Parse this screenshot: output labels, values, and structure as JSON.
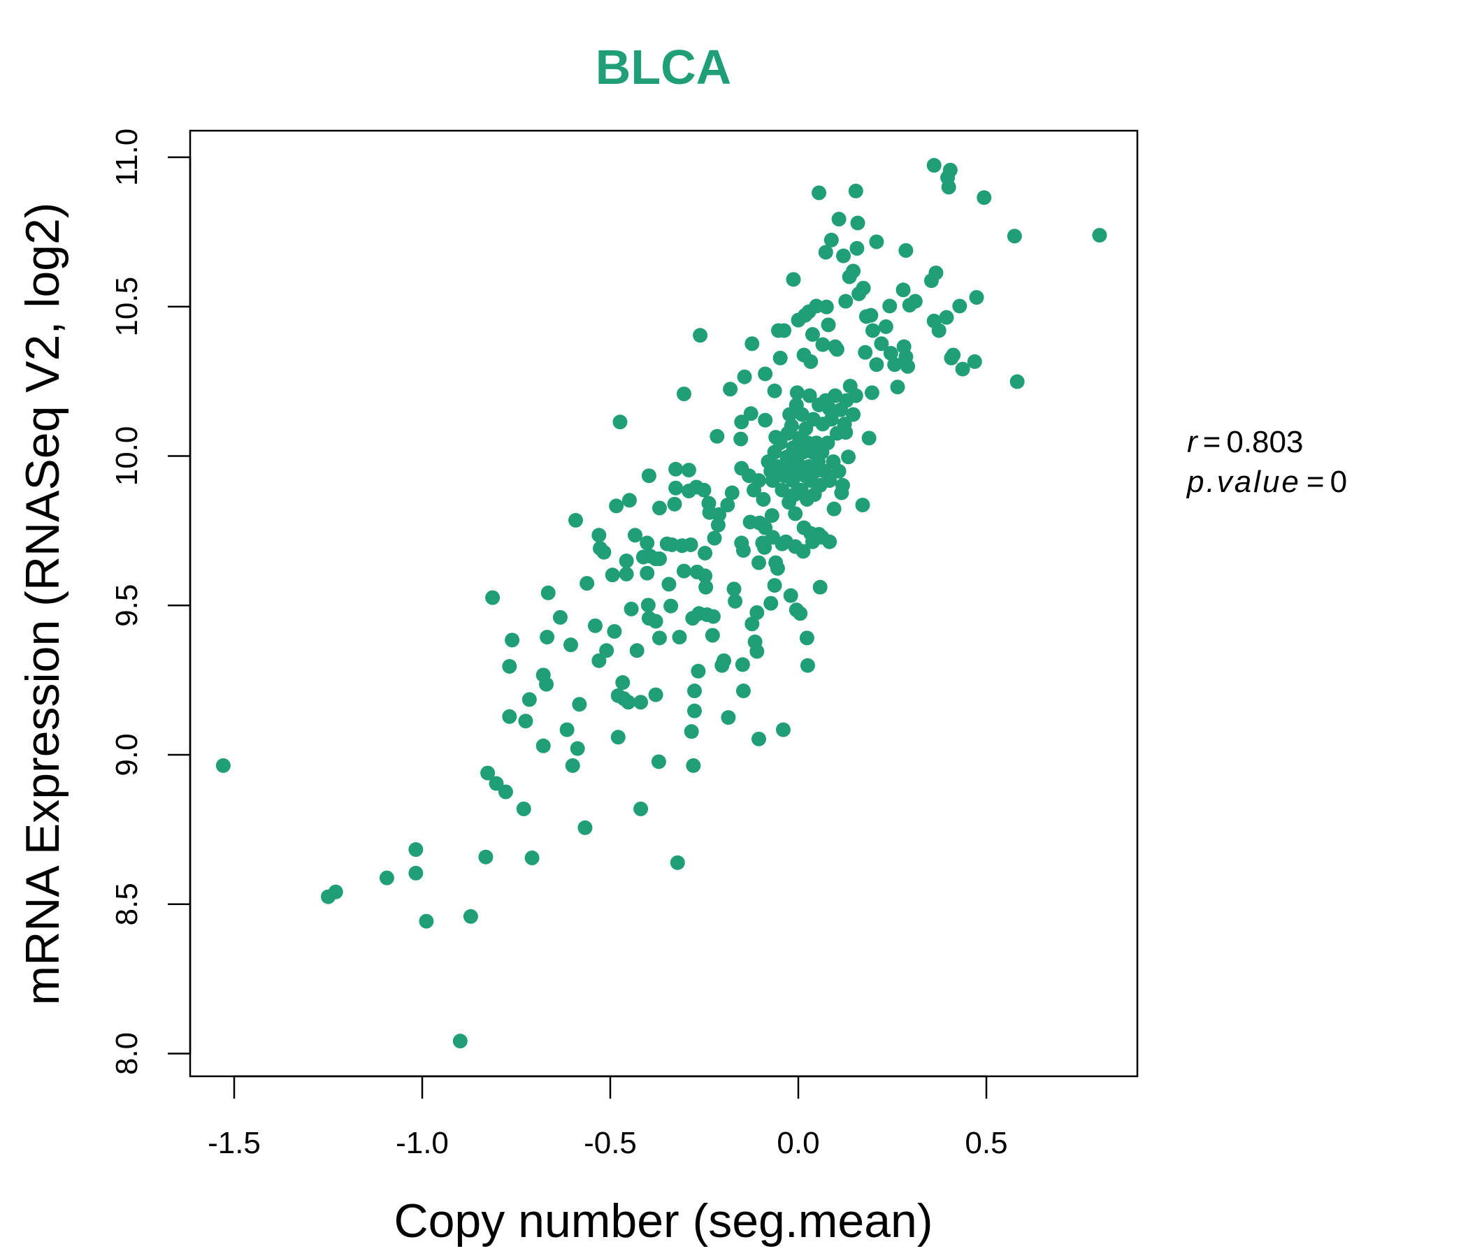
{
  "colors": {
    "accent": "#1f9e78",
    "axis": "#000000"
  },
  "chart_data": {
    "type": "scatter",
    "title": "BLCA",
    "xlabel": "Copy number (seg.mean)",
    "ylabel": "mRNA Expression (RNASeq V2, log2)",
    "xlim": [
      -1.6,
      0.9
    ],
    "ylim": [
      7.95,
      11.1
    ],
    "xticks": [
      -1.5,
      -1.0,
      -0.5,
      0.0,
      0.5
    ],
    "xtick_labels": [
      "-1.5",
      "-1.0",
      "-0.5",
      "0.0",
      "0.5"
    ],
    "yticks": [
      8.0,
      8.5,
      9.0,
      9.5,
      10.0,
      10.5,
      11.0
    ],
    "ytick_labels": [
      "8.0",
      "8.5",
      "9.0",
      "9.5",
      "10.0",
      "10.5",
      "11.0"
    ],
    "grid": false,
    "annotations": {
      "r_label": "r",
      "r_value": "0.803",
      "p_label": "p.value",
      "p_value": "0",
      "eq": "="
    },
    "points": [
      [
        -1.529,
        8.964
      ],
      [
        -1.25,
        8.525
      ],
      [
        -1.23,
        8.541
      ],
      [
        -1.094,
        8.588
      ],
      [
        -1.017,
        8.683
      ],
      [
        -1.017,
        8.604
      ],
      [
        -0.989,
        8.443
      ],
      [
        -0.899,
        8.042
      ],
      [
        -0.871,
        8.459
      ],
      [
        -0.831,
        8.658
      ],
      [
        -0.826,
        8.939
      ],
      [
        -0.803,
        8.904
      ],
      [
        -0.778,
        8.876
      ],
      [
        -0.813,
        9.526
      ],
      [
        -0.768,
        9.296
      ],
      [
        -0.761,
        9.384
      ],
      [
        -0.768,
        9.128
      ],
      [
        -0.73,
        8.819
      ],
      [
        -0.725,
        9.113
      ],
      [
        -0.715,
        9.185
      ],
      [
        -0.708,
        8.655
      ],
      [
        -0.678,
        9.267
      ],
      [
        -0.67,
        9.236
      ],
      [
        -0.678,
        9.03
      ],
      [
        -0.668,
        9.394
      ],
      [
        -0.665,
        9.542
      ],
      [
        -0.633,
        9.46
      ],
      [
        -0.615,
        9.084
      ],
      [
        -0.605,
        9.368
      ],
      [
        -0.6,
        8.964
      ],
      [
        -0.587,
        9.021
      ],
      [
        -0.592,
        9.785
      ],
      [
        -0.582,
        9.169
      ],
      [
        -0.567,
        8.756
      ],
      [
        -0.562,
        9.574
      ],
      [
        -0.54,
        9.432
      ],
      [
        -0.53,
        9.315
      ],
      [
        -0.51,
        9.349
      ],
      [
        -0.53,
        9.735
      ],
      [
        -0.527,
        9.691
      ],
      [
        -0.517,
        9.678
      ],
      [
        -0.494,
        9.602
      ],
      [
        -0.489,
        9.413
      ],
      [
        -0.484,
        9.833
      ],
      [
        -0.479,
        9.059
      ],
      [
        -0.474,
        10.114
      ],
      [
        -0.479,
        9.198
      ],
      [
        -0.467,
        9.242
      ],
      [
        -0.464,
        9.188
      ],
      [
        -0.452,
        9.176
      ],
      [
        -0.457,
        9.649
      ],
      [
        -0.457,
        9.605
      ],
      [
        -0.449,
        9.852
      ],
      [
        -0.444,
        9.488
      ],
      [
        -0.434,
        9.735
      ],
      [
        -0.429,
        9.349
      ],
      [
        -0.419,
        9.176
      ],
      [
        -0.419,
        8.819
      ],
      [
        -0.412,
        9.662
      ],
      [
        -0.402,
        9.709
      ],
      [
        -0.402,
        9.608
      ],
      [
        -0.399,
        9.501
      ],
      [
        -0.397,
        9.457
      ],
      [
        -0.397,
        9.934
      ],
      [
        -0.394,
        9.665
      ],
      [
        -0.379,
        9.447
      ],
      [
        -0.379,
        9.656
      ],
      [
        -0.369,
        9.656
      ],
      [
        -0.379,
        9.201
      ],
      [
        -0.371,
        8.977
      ],
      [
        -0.369,
        9.391
      ],
      [
        -0.369,
        9.826
      ],
      [
        -0.349,
        9.706
      ],
      [
        -0.344,
        9.571
      ],
      [
        -0.339,
        9.498
      ],
      [
        -0.336,
        9.703
      ],
      [
        -0.329,
        9.839
      ],
      [
        -0.326,
        9.956
      ],
      [
        -0.326,
        9.893
      ],
      [
        -0.321,
        8.639
      ],
      [
        -0.316,
        9.394
      ],
      [
        -0.309,
        9.7
      ],
      [
        -0.304,
        9.615
      ],
      [
        -0.304,
        10.208
      ],
      [
        -0.291,
        9.883
      ],
      [
        -0.291,
        9.953
      ],
      [
        -0.286,
        9.703
      ],
      [
        -0.284,
        9.078
      ],
      [
        -0.279,
        8.964
      ],
      [
        -0.276,
        9.147
      ],
      [
        -0.276,
        9.214
      ],
      [
        -0.281,
        9.457
      ],
      [
        -0.271,
        9.896
      ],
      [
        -0.269,
        9.612
      ],
      [
        -0.266,
        9.28
      ],
      [
        -0.264,
        9.473
      ],
      [
        -0.261,
        10.404
      ],
      [
        -0.251,
        9.886
      ],
      [
        -0.248,
        9.675
      ],
      [
        -0.248,
        9.599
      ],
      [
        -0.246,
        9.561
      ],
      [
        -0.243,
        9.469
      ],
      [
        -0.238,
        9.842
      ],
      [
        -0.236,
        9.811
      ],
      [
        -0.228,
        9.4
      ],
      [
        -0.226,
        9.463
      ],
      [
        -0.223,
        9.725
      ],
      [
        -0.216,
        10.066
      ],
      [
        -0.213,
        9.769
      ],
      [
        -0.211,
        9.804
      ],
      [
        -0.203,
        9.299
      ],
      [
        -0.198,
        9.315
      ],
      [
        -0.188,
        9.836
      ],
      [
        -0.186,
        9.125
      ],
      [
        -0.181,
        10.224
      ],
      [
        -0.176,
        9.877
      ],
      [
        -0.171,
        9.555
      ],
      [
        -0.168,
        9.514
      ],
      [
        -0.153,
        10.057
      ],
      [
        -0.151,
        10.114
      ],
      [
        -0.148,
        9.302
      ],
      [
        -0.146,
        9.214
      ],
      [
        -0.151,
        9.959
      ],
      [
        -0.151,
        9.709
      ],
      [
        -0.146,
        9.684
      ],
      [
        -0.143,
        10.265
      ],
      [
        -0.126,
        10.142
      ],
      [
        -0.128,
        9.779
      ],
      [
        -0.123,
        9.438
      ],
      [
        -0.123,
        10.376
      ],
      [
        -0.115,
        9.378
      ],
      [
        -0.11,
        9.346
      ],
      [
        -0.11,
        9.476
      ],
      [
        -0.105,
        9.053
      ],
      [
        -0.105,
        9.643
      ],
      [
        -0.103,
        9.776
      ],
      [
        -0.095,
        9.709
      ],
      [
        -0.09,
        9.694
      ],
      [
        -0.088,
        10.275
      ],
      [
        -0.088,
        10.12
      ],
      [
        -0.073,
        9.507
      ],
      [
        -0.07,
        9.801
      ],
      [
        -0.063,
        9.567
      ],
      [
        -0.063,
        10.218
      ],
      [
        -0.06,
        9.643
      ],
      [
        -0.06,
        10.063
      ],
      [
        -0.055,
        9.624
      ],
      [
        -0.053,
        10.42
      ],
      [
        -0.043,
        9.706
      ],
      [
        -0.048,
        10.328
      ],
      [
        -0.04,
        9.084
      ],
      [
        -0.038,
        10.42
      ],
      [
        -0.025,
        9.845
      ],
      [
        -0.02,
        9.533
      ],
      [
        -0.018,
        10.101
      ],
      [
        -0.013,
        10.591
      ],
      [
        -0.005,
        9.485
      ],
      [
        -0.003,
        10.212
      ],
      [
        0.0,
        10.455
      ],
      [
        0.005,
        9.473
      ],
      [
        0.015,
        10.338
      ],
      [
        0.018,
        10.471
      ],
      [
        0.023,
        9.391
      ],
      [
        0.025,
        9.299
      ],
      [
        0.028,
        10.483
      ],
      [
        0.033,
        10.316
      ],
      [
        0.033,
        9.741
      ],
      [
        0.038,
        10.407
      ],
      [
        0.055,
        10.881
      ],
      [
        0.048,
        10.502
      ],
      [
        0.058,
        9.561
      ],
      [
        0.055,
        9.738
      ],
      [
        0.065,
        10.373
      ],
      [
        0.073,
        10.682
      ],
      [
        0.075,
        10.499
      ],
      [
        0.08,
        10.439
      ],
      [
        0.083,
        10.158
      ],
      [
        0.088,
        10.723
      ],
      [
        0.095,
        9.823
      ],
      [
        0.098,
        10.366
      ],
      [
        0.103,
        10.357
      ],
      [
        0.108,
        10.793
      ],
      [
        0.115,
        9.877
      ],
      [
        0.12,
        10.67
      ],
      [
        0.126,
        10.079
      ],
      [
        0.126,
        10.518
      ],
      [
        0.136,
        10.6
      ],
      [
        0.146,
        10.619
      ],
      [
        0.153,
        10.887
      ],
      [
        0.156,
        10.695
      ],
      [
        0.158,
        10.78
      ],
      [
        0.161,
        10.543
      ],
      [
        0.171,
        9.836
      ],
      [
        0.173,
        10.562
      ],
      [
        0.178,
        10.347
      ],
      [
        0.181,
        10.467
      ],
      [
        0.188,
        10.06
      ],
      [
        0.193,
        10.471
      ],
      [
        0.196,
        10.212
      ],
      [
        0.198,
        10.42
      ],
      [
        0.208,
        10.717
      ],
      [
        0.208,
        10.306
      ],
      [
        0.221,
        10.376
      ],
      [
        0.233,
        10.433
      ],
      [
        0.243,
        10.502
      ],
      [
        0.246,
        10.344
      ],
      [
        0.256,
        10.306
      ],
      [
        0.264,
        10.231
      ],
      [
        0.279,
        10.556
      ],
      [
        0.281,
        10.366
      ],
      [
        0.286,
        10.688
      ],
      [
        0.286,
        10.332
      ],
      [
        0.291,
        10.3
      ],
      [
        0.296,
        10.505
      ],
      [
        0.311,
        10.518
      ],
      [
        0.354,
        10.587
      ],
      [
        0.361,
        10.973
      ],
      [
        0.361,
        10.452
      ],
      [
        0.366,
        10.613
      ],
      [
        0.374,
        10.42
      ],
      [
        0.397,
        10.932
      ],
      [
        0.394,
        10.464
      ],
      [
        0.404,
        10.957
      ],
      [
        0.407,
        10.328
      ],
      [
        0.412,
        10.338
      ],
      [
        0.4,
        10.9
      ],
      [
        0.429,
        10.502
      ],
      [
        0.437,
        10.291
      ],
      [
        0.469,
        10.316
      ],
      [
        0.474,
        10.531
      ],
      [
        0.494,
        10.865
      ],
      [
        0.575,
        10.736
      ],
      [
        0.582,
        10.249
      ],
      [
        0.801,
        10.739
      ],
      [
        -0.08,
        9.981
      ],
      [
        -0.073,
        9.949
      ],
      [
        -0.068,
        9.918
      ],
      [
        -0.063,
        10.013
      ],
      [
        -0.055,
        9.965
      ],
      [
        -0.048,
        10.044
      ],
      [
        -0.043,
        9.886
      ],
      [
        -0.038,
        9.934
      ],
      [
        -0.03,
        9.997
      ],
      [
        -0.028,
        10.076
      ],
      [
        -0.023,
        10.139
      ],
      [
        -0.018,
        9.965
      ],
      [
        -0.015,
        9.918
      ],
      [
        -0.013,
        10.028
      ],
      [
        -0.01,
        9.871
      ],
      [
        -0.008,
        9.807
      ],
      [
        -0.005,
        10.171
      ],
      [
        -0.003,
        9.981
      ],
      [
        0.003,
        10.06
      ],
      [
        0.005,
        9.949
      ],
      [
        0.008,
        9.886
      ],
      [
        0.01,
        10.139
      ],
      [
        0.013,
        10.013
      ],
      [
        0.015,
        9.76
      ],
      [
        0.018,
        9.934
      ],
      [
        0.02,
        10.092
      ],
      [
        0.023,
        9.855
      ],
      [
        0.025,
        10.044
      ],
      [
        0.028,
        9.965
      ],
      [
        0.03,
        10.202
      ],
      [
        0.033,
        9.918
      ],
      [
        0.038,
        10.013
      ],
      [
        0.04,
        10.123
      ],
      [
        0.043,
        9.871
      ],
      [
        0.045,
        9.949
      ],
      [
        0.048,
        10.044
      ],
      [
        0.053,
        9.981
      ],
      [
        0.055,
        10.171
      ],
      [
        0.058,
        9.902
      ],
      [
        0.063,
        10.013
      ],
      [
        0.065,
        10.107
      ],
      [
        0.07,
        9.949
      ],
      [
        0.073,
        10.186
      ],
      [
        0.078,
        10.044
      ],
      [
        0.083,
        9.918
      ],
      [
        0.088,
        10.123
      ],
      [
        0.093,
        9.981
      ],
      [
        0.098,
        10.202
      ],
      [
        0.103,
        10.076
      ],
      [
        0.108,
        9.949
      ],
      [
        0.113,
        10.155
      ],
      [
        0.118,
        9.902
      ],
      [
        0.123,
        10.107
      ],
      [
        0.128,
        10.186
      ],
      [
        0.133,
        9.997
      ],
      [
        0.138,
        10.234
      ],
      [
        0.146,
        10.139
      ],
      [
        0.153,
        10.202
      ],
      [
        -0.093,
        9.855
      ],
      [
        -0.105,
        9.918
      ],
      [
        -0.118,
        9.886
      ],
      [
        -0.131,
        9.934
      ],
      [
        -0.088,
        9.76
      ],
      [
        -0.068,
        9.728
      ],
      [
        -0.033,
        9.713
      ],
      [
        -0.008,
        9.697
      ],
      [
        0.013,
        9.681
      ],
      [
        0.038,
        9.713
      ],
      [
        0.063,
        9.728
      ],
      [
        0.083,
        9.713
      ]
    ]
  }
}
